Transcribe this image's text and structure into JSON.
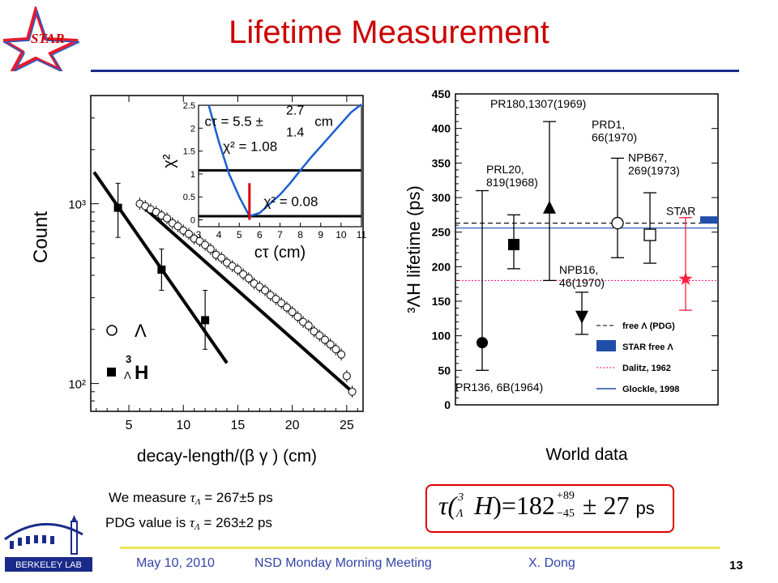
{
  "slide": {
    "title": "Lifetime Measurement",
    "star_logo_text": "STAR",
    "footer_date": "May 10, 2010",
    "footer_meeting": "NSD Monday Morning Meeting",
    "footer_author": "X. Dong",
    "slide_number": "13",
    "berkeley_logo_text": "BERKELEY LAB"
  },
  "measurements": {
    "we_measure_prefix": "We measure",
    "we_measure_value": "= 267±5 ps",
    "pdg_prefix": "PDG value is",
    "pdg_value": "= 263±2 ps",
    "tau_symbol": "τ",
    "lambda_sub": "Λ"
  },
  "result": {
    "lhs": "τ(",
    "mass_number": "3",
    "lambda_sub": "Λ",
    "nucleus": "H",
    "equals_value": ")=182",
    "err_plus": "+89",
    "err_minus": "−45",
    "syst": "± 27",
    "unit": "ps"
  },
  "colors": {
    "title": "#cc0000",
    "rule": "#1a2a8a",
    "footer_text": "#3344aa",
    "footer_rule": "#e8e85a",
    "star_red": "#e8192c",
    "star_blue": "#1a5fd0",
    "chi2_curve": "#1a5fd0",
    "pdg_line": "#1f4fa8",
    "dalitz_line": "#ff0080",
    "star_marker": "#ff1f3f"
  },
  "chart_data": [
    {
      "type": "scatter",
      "xlabel": "decay-length/(β γ ) (cm)",
      "ylabel": "Count",
      "xlim": [
        1.5,
        26.5
      ],
      "ylim": [
        70,
        4000
      ],
      "y_scale": "log",
      "x_ticks": [
        "5",
        "10",
        "15",
        "20",
        "25"
      ],
      "y_ticks": [
        "10²",
        "10³"
      ],
      "legend": [
        {
          "symbol": "○",
          "label": "Λ"
        },
        {
          "symbol": "■",
          "label": "³ΛH",
          "sup": "3",
          "sub": "Λ",
          "text": "H"
        }
      ],
      "series": [
        {
          "name": "Λ",
          "marker": "open-circle",
          "points": [
            [
              6.0,
              1000
            ],
            [
              6.5,
              970
            ],
            [
              7.0,
              930
            ],
            [
              7.5,
              900
            ],
            [
              8.0,
              860
            ],
            [
              8.5,
              830
            ],
            [
              9.0,
              780
            ],
            [
              9.5,
              750
            ],
            [
              10.0,
              710
            ],
            [
              10.5,
              680
            ],
            [
              11.0,
              640
            ],
            [
              11.5,
              620
            ],
            [
              12.0,
              590
            ],
            [
              12.5,
              560
            ],
            [
              13.0,
              520
            ],
            [
              13.5,
              500
            ],
            [
              14.0,
              470
            ],
            [
              14.5,
              450
            ],
            [
              15.0,
              430
            ],
            [
              15.5,
              405
            ],
            [
              16.0,
              385
            ],
            [
              16.5,
              360
            ],
            [
              17.0,
              345
            ],
            [
              17.5,
              330
            ],
            [
              18.0,
              310
            ],
            [
              18.5,
              295
            ],
            [
              19.0,
              280
            ],
            [
              19.5,
              265
            ],
            [
              20.0,
              250
            ],
            [
              20.5,
              235
            ],
            [
              21.0,
              220
            ],
            [
              21.5,
              210
            ],
            [
              22.0,
              195
            ],
            [
              22.5,
              185
            ],
            [
              23.0,
              175
            ],
            [
              23.5,
              165
            ],
            [
              24.0,
              155
            ],
            [
              24.5,
              145
            ],
            [
              25.0,
              110
            ],
            [
              25.5,
              90
            ]
          ],
          "fit": [
            [
              6.0,
              1000
            ],
            [
              25.5,
              90
            ]
          ]
        },
        {
          "name": "³ΛH",
          "marker": "filled-square",
          "points": [
            [
              4.0,
              950
            ],
            [
              8.0,
              430
            ],
            [
              12.0,
              225
            ]
          ],
          "errors": [
            [
              650,
              1300
            ],
            [
              330,
              560
            ],
            [
              155,
              330
            ]
          ],
          "fit": [
            [
              1.8,
              1500
            ],
            [
              14.0,
              130
            ]
          ]
        }
      ]
    },
    {
      "type": "line",
      "title": "inset",
      "xlabel": "cτ (cm)",
      "ylabel": "χ²",
      "xlim": [
        3,
        11
      ],
      "ylim": [
        -0.15,
        2.5
      ],
      "x_ticks": [
        "3",
        "4",
        "5",
        "6",
        "7",
        "8",
        "9",
        "10",
        "11"
      ],
      "y_ticks": [
        "0",
        "0.5",
        "1",
        "1.5",
        "2",
        "2.5"
      ],
      "annotations": [
        {
          "text": "cτ = 5.5 ±",
          "plus": "2.7",
          "minus": "1.4",
          "unit": "cm"
        },
        {
          "text": "χ² = 1.08"
        },
        {
          "text": "χ² = 0.08"
        }
      ],
      "horizontal_lines": [
        1.08,
        0.08
      ],
      "marker_x": 5.5,
      "curve": [
        [
          3.5,
          2.5
        ],
        [
          4.0,
          1.7
        ],
        [
          4.5,
          1.0
        ],
        [
          5.0,
          0.5
        ],
        [
          5.5,
          0.08
        ],
        [
          6.0,
          0.15
        ],
        [
          6.5,
          0.35
        ],
        [
          7.0,
          0.55
        ],
        [
          7.5,
          0.8
        ],
        [
          8.0,
          1.08
        ],
        [
          8.5,
          1.35
        ],
        [
          9.0,
          1.6
        ],
        [
          9.5,
          1.85
        ],
        [
          10.0,
          2.1
        ],
        [
          10.5,
          2.35
        ],
        [
          11.0,
          2.55
        ]
      ]
    },
    {
      "type": "scatter",
      "xlabel": "World data",
      "ylabel": "³ΛH lifetime (ps)",
      "ylim": [
        0,
        450
      ],
      "y_ticks": [
        "0",
        "50",
        "100",
        "150",
        "200",
        "250",
        "300",
        "350",
        "400",
        "450"
      ],
      "reference_lines": [
        {
          "name": "free Λ (PDG)",
          "value": 263,
          "style": "dashed"
        },
        {
          "name": "Dalitz, 1962",
          "value": 180,
          "style": "dotted"
        },
        {
          "name": "Glockle, 1998",
          "value": 256,
          "style": "solid"
        }
      ],
      "star_free_band": {
        "name": "STAR free Λ",
        "value": 267
      },
      "points": [
        {
          "label": "PR136, 6B(1964)",
          "value": 90,
          "lo": 50,
          "hi": 310,
          "marker": "filled-circle"
        },
        {
          "label": "PRL20, 819(1968)",
          "value": 232,
          "lo": 197,
          "hi": 275,
          "marker": "filled-square"
        },
        {
          "label": "PR180,1307(1969)",
          "value": 285,
          "lo": 180,
          "hi": 410,
          "marker": "filled-triangle-up"
        },
        {
          "label": "NPB16, 46(1970)",
          "value": 128,
          "lo": 102,
          "hi": 163,
          "marker": "filled-triangle-down"
        },
        {
          "label": "PRD1, 66(1970)",
          "value": 263,
          "lo": 213,
          "hi": 357,
          "marker": "open-circle"
        },
        {
          "label": "NPB67, 269(1973)",
          "value": 246,
          "lo": 205,
          "hi": 307,
          "marker": "open-square"
        },
        {
          "label": "STAR",
          "value": 182,
          "lo": 137,
          "hi": 271,
          "marker": "star"
        }
      ],
      "legend": [
        {
          "label": "free Λ (PDG)"
        },
        {
          "label": "STAR free Λ"
        },
        {
          "label": "Dalitz, 1962"
        },
        {
          "label": "Glockle, 1998"
        }
      ]
    }
  ]
}
